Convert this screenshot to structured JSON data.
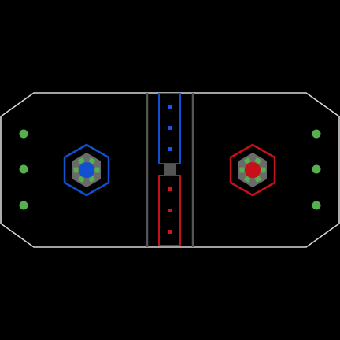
{
  "game": {
    "type": "top-down field view",
    "colors": {
      "background": "#000000",
      "field_outline": "#d8d8d8",
      "divider": "#555555",
      "blue": "#1150d0",
      "red": "#c81018",
      "blue_marker": "#1a55e8",
      "red_marker": "#d01818",
      "green": "#56b050",
      "hub_gray": "#6a6a6a",
      "center_block": "#555555"
    },
    "blue_goal": {
      "team": "blue",
      "ring_pegs": 6
    },
    "red_goal": {
      "team": "red",
      "ring_pegs": 6
    },
    "blue_zone": {
      "team": "blue",
      "markers": 3
    },
    "red_zone": {
      "team": "red",
      "markers": 3
    },
    "left_pegs": {
      "count": 3
    },
    "right_pegs": {
      "count": 3
    }
  }
}
